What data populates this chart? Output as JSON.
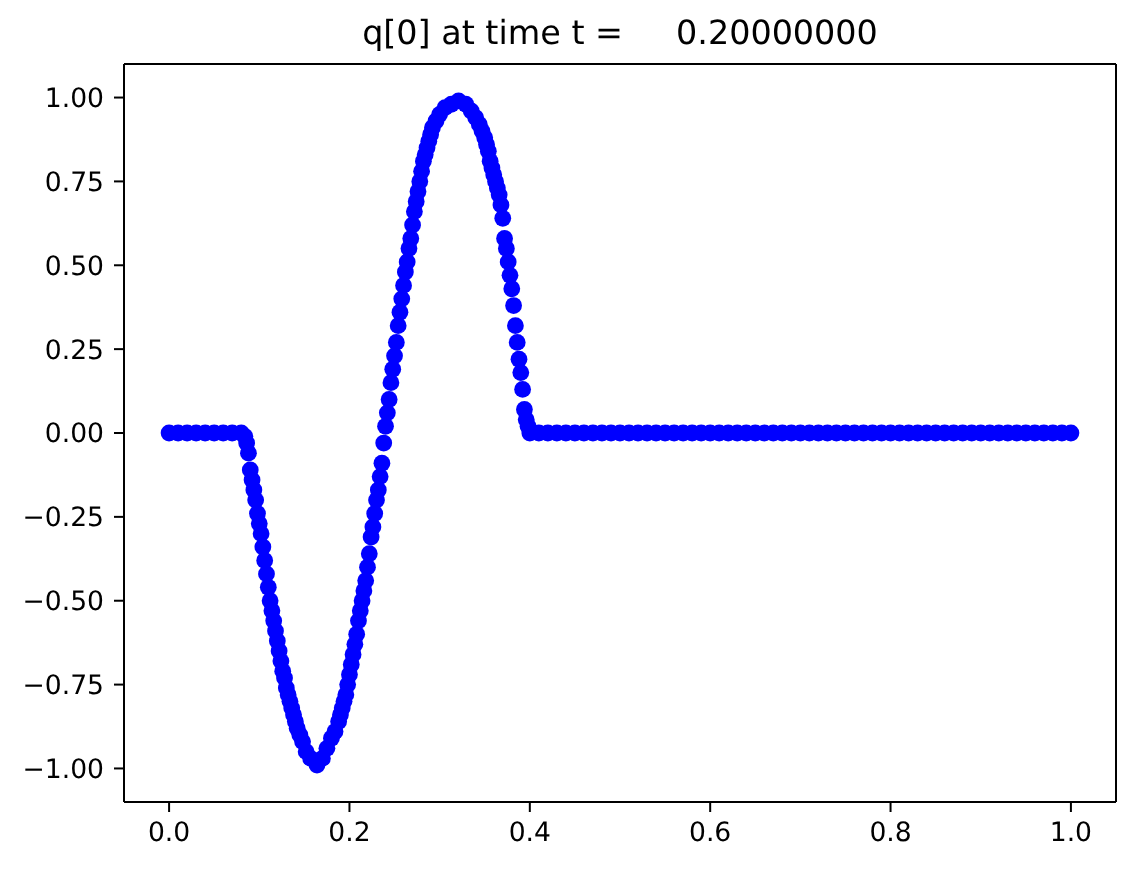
{
  "chart_data": {
    "type": "scatter",
    "title": "q[0] at time t =     0.20000000",
    "color": "#0000ff",
    "marker": "circle",
    "x": [
      0,
      0.01,
      0.02,
      0.03,
      0.04,
      0.05,
      0.06,
      0.07,
      0.08,
      0.084,
      0.086,
      0.088,
      0.09,
      0.092,
      0.094,
      0.096,
      0.098,
      0.1,
      0.102,
      0.104,
      0.106,
      0.108,
      0.11,
      0.112,
      0.114,
      0.116,
      0.118,
      0.12,
      0.122,
      0.124,
      0.126,
      0.128,
      0.13,
      0.132,
      0.134,
      0.136,
      0.138,
      0.14,
      0.142,
      0.145,
      0.148,
      0.152,
      0.157,
      0.164,
      0.17,
      0.175,
      0.18,
      0.184,
      0.188,
      0.19,
      0.192,
      0.194,
      0.196,
      0.198,
      0.2,
      0.202,
      0.204,
      0.206,
      0.208,
      0.21,
      0.212,
      0.214,
      0.216,
      0.218,
      0.22,
      0.222,
      0.224,
      0.226,
      0.228,
      0.23,
      0.232,
      0.234,
      0.236,
      0.238,
      0.24,
      0.242,
      0.244,
      0.246,
      0.248,
      0.25,
      0.252,
      0.254,
      0.256,
      0.258,
      0.26,
      0.262,
      0.264,
      0.266,
      0.268,
      0.27,
      0.272,
      0.274,
      0.276,
      0.278,
      0.28,
      0.282,
      0.284,
      0.286,
      0.288,
      0.29,
      0.292,
      0.296,
      0.3,
      0.306,
      0.313,
      0.321,
      0.329,
      0.335,
      0.34,
      0.344,
      0.347,
      0.35,
      0.352,
      0.354,
      0.356,
      0.358,
      0.36,
      0.362,
      0.364,
      0.366,
      0.368,
      0.37,
      0.372,
      0.374,
      0.376,
      0.378,
      0.38,
      0.382,
      0.384,
      0.386,
      0.388,
      0.39,
      0.392,
      0.394,
      0.396,
      0.398,
      0.4,
      0.41,
      0.42,
      0.43,
      0.44,
      0.45,
      0.46,
      0.47,
      0.48,
      0.49,
      0.5,
      0.51,
      0.52,
      0.53,
      0.54,
      0.55,
      0.56,
      0.57,
      0.58,
      0.59,
      0.6,
      0.61,
      0.62,
      0.63,
      0.64,
      0.65,
      0.66,
      0.67,
      0.68,
      0.69,
      0.7,
      0.71,
      0.72,
      0.73,
      0.74,
      0.75,
      0.76,
      0.77,
      0.78,
      0.79,
      0.8,
      0.81,
      0.82,
      0.83,
      0.84,
      0.85,
      0.86,
      0.87,
      0.88,
      0.89,
      0.9,
      0.91,
      0.92,
      0.93,
      0.94,
      0.95,
      0.96,
      0.97,
      0.98,
      0.99,
      1
    ],
    "values": [
      0,
      0,
      0,
      0,
      0,
      0,
      0,
      0,
      0,
      -0.01,
      -0.03,
      -0.06,
      -0.11,
      -0.14,
      -0.17,
      -0.2,
      -0.24,
      -0.27,
      -0.3,
      -0.34,
      -0.38,
      -0.42,
      -0.46,
      -0.5,
      -0.53,
      -0.56,
      -0.59,
      -0.62,
      -0.65,
      -0.68,
      -0.71,
      -0.73,
      -0.76,
      -0.78,
      -0.8,
      -0.82,
      -0.84,
      -0.86,
      -0.88,
      -0.9,
      -0.92,
      -0.95,
      -0.97,
      -0.99,
      -0.97,
      -0.94,
      -0.91,
      -0.89,
      -0.86,
      -0.84,
      -0.82,
      -0.8,
      -0.78,
      -0.75,
      -0.72,
      -0.69,
      -0.66,
      -0.63,
      -0.6,
      -0.56,
      -0.53,
      -0.5,
      -0.47,
      -0.44,
      -0.4,
      -0.36,
      -0.31,
      -0.28,
      -0.24,
      -0.2,
      -0.17,
      -0.13,
      -0.09,
      -0.03,
      0.02,
      0.06,
      0.1,
      0.15,
      0.19,
      0.23,
      0.27,
      0.32,
      0.36,
      0.4,
      0.44,
      0.48,
      0.51,
      0.55,
      0.58,
      0.62,
      0.66,
      0.69,
      0.72,
      0.75,
      0.78,
      0.81,
      0.83,
      0.85,
      0.87,
      0.89,
      0.91,
      0.93,
      0.95,
      0.97,
      0.98,
      0.99,
      0.98,
      0.96,
      0.94,
      0.92,
      0.9,
      0.88,
      0.86,
      0.84,
      0.81,
      0.79,
      0.77,
      0.75,
      0.73,
      0.71,
      0.68,
      0.64,
      0.58,
      0.55,
      0.51,
      0.47,
      0.43,
      0.38,
      0.32,
      0.27,
      0.22,
      0.18,
      0.13,
      0.07,
      0.04,
      0.02,
      0,
      0,
      0,
      0,
      0,
      0,
      0,
      0,
      0,
      0,
      0,
      0,
      0,
      0,
      0,
      0,
      0,
      0,
      0,
      0,
      0,
      0,
      0,
      0,
      0,
      0,
      0,
      0,
      0,
      0,
      0,
      0,
      0,
      0,
      0,
      0,
      0,
      0,
      0,
      0,
      0,
      0,
      0,
      0,
      0,
      0,
      0,
      0,
      0,
      0,
      0,
      0,
      0,
      0,
      0,
      0,
      0,
      0,
      0,
      0,
      0
    ],
    "xlim": [
      -0.05,
      1.05
    ],
    "ylim": [
      -1.1,
      1.1
    ],
    "xticks": [
      {
        "value": 0,
        "label": "0.0"
      },
      0.2,
      0.4,
      0.6,
      0.8,
      {
        "value": 1,
        "label": "1.0"
      }
    ],
    "yticks": [
      {
        "value": -1,
        "label": "−1.00"
      },
      {
        "value": -0.75,
        "label": "−0.75"
      },
      {
        "value": -0.5,
        "label": "−0.50"
      },
      {
        "value": -0.25,
        "label": "−0.25"
      },
      {
        "value": 0,
        "label": "0.00"
      },
      {
        "value": 0.25,
        "label": "0.25"
      },
      {
        "value": 0.5,
        "label": "0.50"
      },
      {
        "value": 0.75,
        "label": "0.75"
      },
      {
        "value": 1,
        "label": "1.00"
      }
    ]
  }
}
